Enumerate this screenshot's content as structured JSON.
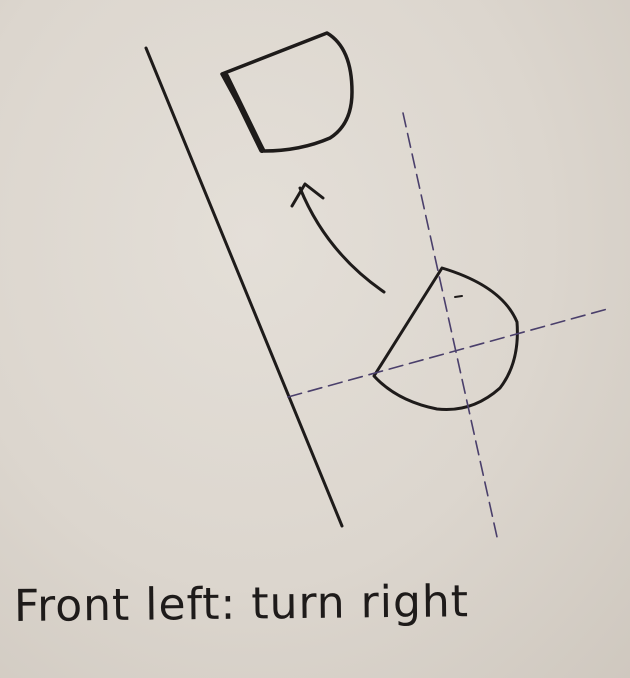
{
  "caption": "Front left: turn right",
  "colors": {
    "paper": "#dcd6ce",
    "ink_black": "#1e1b1a",
    "ink_purple": "#4a3f6b"
  },
  "icons": [
    "curved-turn-arrow-icon"
  ]
}
